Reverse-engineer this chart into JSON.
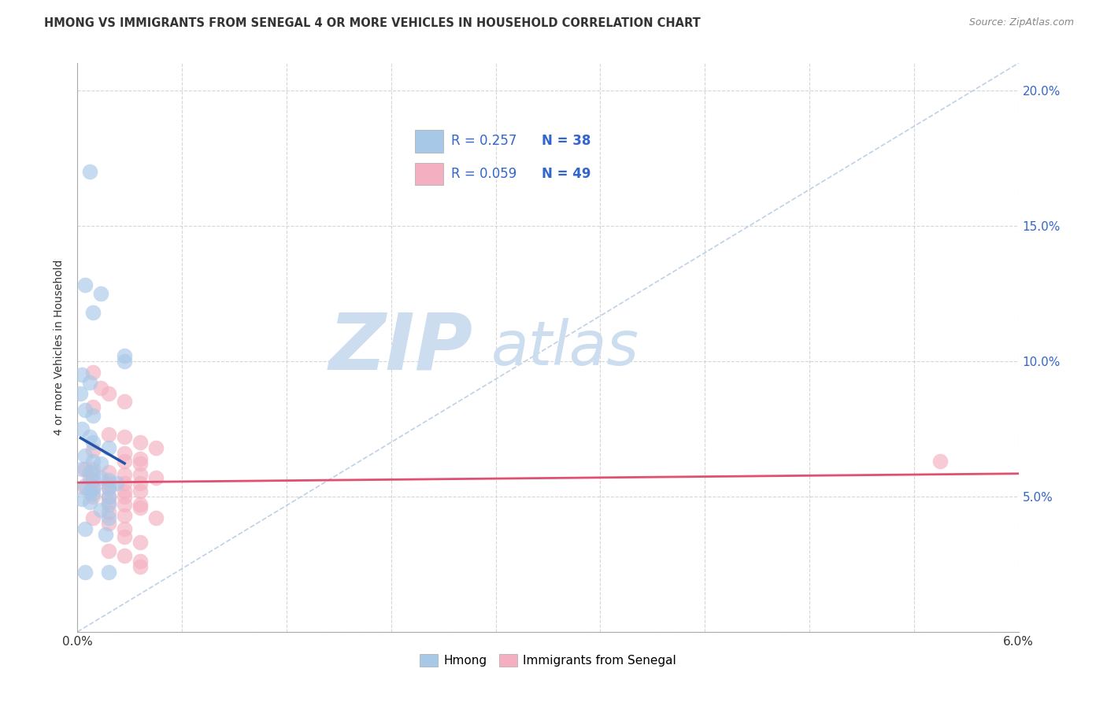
{
  "title": "HMONG VS IMMIGRANTS FROM SENEGAL 4 OR MORE VEHICLES IN HOUSEHOLD CORRELATION CHART",
  "source": "Source: ZipAtlas.com",
  "ylabel": "4 or more Vehicles in Household",
  "xlim": [
    0.0,
    0.06
  ],
  "ylim": [
    0.0,
    0.21
  ],
  "hmong_color": "#a8c8e8",
  "senegal_color": "#f4b0c0",
  "hmong_line_color": "#2255aa",
  "senegal_line_color": "#e05070",
  "diagonal_color": "#b8cce4",
  "legend_text_color": "#3366cc",
  "watermark_zip": "ZIP",
  "watermark_atlas": "atlas",
  "watermark_color": "#ccddf0",
  "background_color": "#ffffff",
  "grid_color": "#cccccc",
  "hmong_points": [
    [
      0.0008,
      0.17
    ],
    [
      0.0015,
      0.125
    ],
    [
      0.0005,
      0.128
    ],
    [
      0.001,
      0.118
    ],
    [
      0.0003,
      0.095
    ],
    [
      0.0008,
      0.092
    ],
    [
      0.0002,
      0.088
    ],
    [
      0.0005,
      0.082
    ],
    [
      0.001,
      0.08
    ],
    [
      0.003,
      0.102
    ],
    [
      0.003,
      0.1
    ],
    [
      0.0003,
      0.075
    ],
    [
      0.0008,
      0.072
    ],
    [
      0.001,
      0.07
    ],
    [
      0.002,
      0.068
    ],
    [
      0.0005,
      0.065
    ],
    [
      0.001,
      0.063
    ],
    [
      0.0015,
      0.062
    ],
    [
      0.0003,
      0.06
    ],
    [
      0.0008,
      0.059
    ],
    [
      0.001,
      0.058
    ],
    [
      0.0015,
      0.057
    ],
    [
      0.002,
      0.056
    ],
    [
      0.0025,
      0.055
    ],
    [
      0.0005,
      0.054
    ],
    [
      0.001,
      0.053
    ],
    [
      0.002,
      0.053
    ],
    [
      0.0008,
      0.052
    ],
    [
      0.001,
      0.051
    ],
    [
      0.002,
      0.05
    ],
    [
      0.0003,
      0.049
    ],
    [
      0.0008,
      0.048
    ],
    [
      0.002,
      0.047
    ],
    [
      0.0015,
      0.045
    ],
    [
      0.002,
      0.042
    ],
    [
      0.0005,
      0.038
    ],
    [
      0.0018,
      0.036
    ],
    [
      0.0005,
      0.022
    ],
    [
      0.002,
      0.022
    ]
  ],
  "senegal_points": [
    [
      0.001,
      0.096
    ],
    [
      0.0015,
      0.09
    ],
    [
      0.002,
      0.088
    ],
    [
      0.003,
      0.085
    ],
    [
      0.001,
      0.083
    ],
    [
      0.002,
      0.073
    ],
    [
      0.003,
      0.072
    ],
    [
      0.004,
      0.07
    ],
    [
      0.005,
      0.068
    ],
    [
      0.001,
      0.067
    ],
    [
      0.003,
      0.066
    ],
    [
      0.004,
      0.064
    ],
    [
      0.003,
      0.063
    ],
    [
      0.004,
      0.062
    ],
    [
      0.0005,
      0.06
    ],
    [
      0.001,
      0.06
    ],
    [
      0.002,
      0.059
    ],
    [
      0.003,
      0.058
    ],
    [
      0.004,
      0.058
    ],
    [
      0.005,
      0.057
    ],
    [
      0.0008,
      0.057
    ],
    [
      0.001,
      0.056
    ],
    [
      0.002,
      0.055
    ],
    [
      0.003,
      0.055
    ],
    [
      0.004,
      0.055
    ],
    [
      0.0005,
      0.053
    ],
    [
      0.001,
      0.053
    ],
    [
      0.002,
      0.053
    ],
    [
      0.003,
      0.052
    ],
    [
      0.004,
      0.052
    ],
    [
      0.001,
      0.05
    ],
    [
      0.002,
      0.05
    ],
    [
      0.003,
      0.05
    ],
    [
      0.002,
      0.048
    ],
    [
      0.003,
      0.047
    ],
    [
      0.004,
      0.047
    ],
    [
      0.002,
      0.044
    ],
    [
      0.003,
      0.043
    ],
    [
      0.001,
      0.042
    ],
    [
      0.002,
      0.04
    ],
    [
      0.003,
      0.038
    ],
    [
      0.003,
      0.035
    ],
    [
      0.004,
      0.033
    ],
    [
      0.004,
      0.046
    ],
    [
      0.002,
      0.03
    ],
    [
      0.003,
      0.028
    ],
    [
      0.004,
      0.026
    ],
    [
      0.004,
      0.024
    ],
    [
      0.005,
      0.042
    ],
    [
      0.055,
      0.063
    ]
  ]
}
